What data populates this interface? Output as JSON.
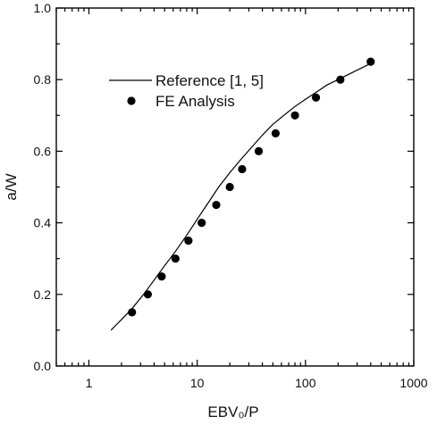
{
  "chart_data": {
    "type": "scatter",
    "xlabel": "EBV₀/P",
    "ylabel": "a/W",
    "xscale": "log",
    "xlim": [
      0.5,
      1000
    ],
    "ylim": [
      0.0,
      1.0
    ],
    "x_ticks": [
      {
        "value": 1,
        "label": "1"
      },
      {
        "value": 10,
        "label": "10"
      },
      {
        "value": 100,
        "label": "100"
      },
      {
        "value": 1000,
        "label": "1000"
      }
    ],
    "y_ticks": [
      {
        "value": 0.0,
        "label": "0.0"
      },
      {
        "value": 0.2,
        "label": "0.2"
      },
      {
        "value": 0.4,
        "label": "0.4"
      },
      {
        "value": 0.6,
        "label": "0.6"
      },
      {
        "value": 0.8,
        "label": "0.8"
      },
      {
        "value": 1.0,
        "label": "1.0"
      }
    ],
    "grid": false,
    "legend_position": "upper-left",
    "series": [
      {
        "name": "Reference [1, 5]",
        "kind": "line",
        "x": [
          1.6,
          2.0,
          2.5,
          3.2,
          4.0,
          5.0,
          6.3,
          8.0,
          10,
          12.6,
          15.8,
          20,
          25,
          31.6,
          40,
          50,
          63,
          80,
          100,
          126,
          158,
          200,
          251,
          316,
          400
        ],
        "y": [
          0.1,
          0.13,
          0.16,
          0.2,
          0.24,
          0.28,
          0.32,
          0.365,
          0.41,
          0.455,
          0.5,
          0.54,
          0.575,
          0.61,
          0.645,
          0.675,
          0.7,
          0.725,
          0.745,
          0.765,
          0.785,
          0.8,
          0.815,
          0.83,
          0.845
        ]
      },
      {
        "name": "FE Analysis",
        "kind": "scatter",
        "x": [
          2.5,
          3.5,
          4.7,
          6.3,
          8.3,
          11,
          15,
          20,
          26,
          37,
          53,
          80,
          125,
          210,
          400
        ],
        "y": [
          0.15,
          0.2,
          0.25,
          0.3,
          0.35,
          0.4,
          0.45,
          0.5,
          0.55,
          0.6,
          0.65,
          0.7,
          0.75,
          0.8,
          0.85
        ]
      }
    ],
    "colors": {
      "line": "#000000",
      "marker": "#000000",
      "axis": "#000000"
    }
  }
}
